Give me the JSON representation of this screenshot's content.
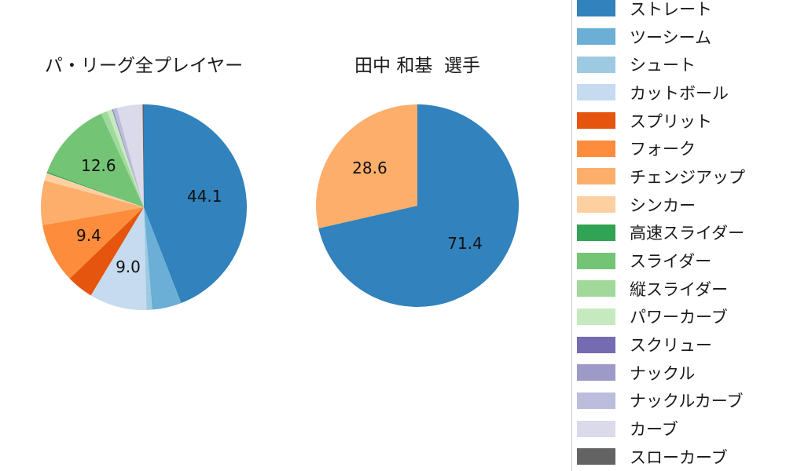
{
  "figure_title": "",
  "chart_data": [
    {
      "type": "pie",
      "title": "パ・リーグ全プレイヤー",
      "start_angle": "top",
      "direction": "clockwise",
      "min_label_pct": 8,
      "value_label_distance": 0.6,
      "slices": [
        {
          "label": "ストレート",
          "value": 44.1,
          "color": "#3182bd"
        },
        {
          "label": "ツーシーム",
          "value": 4.6,
          "color": "#6baed6"
        },
        {
          "label": "シュート",
          "value": 0.9,
          "color": "#9ecae1"
        },
        {
          "label": "カットボール",
          "value": 9.0,
          "color": "#c6dbef"
        },
        {
          "label": "スプリット",
          "value": 4.2,
          "color": "#e6550d"
        },
        {
          "label": "フォーク",
          "value": 9.4,
          "color": "#fd8d3c"
        },
        {
          "label": "チェンジアップ",
          "value": 7.0,
          "color": "#fdae6b"
        },
        {
          "label": "シンカー",
          "value": 1.2,
          "color": "#fdd0a2"
        },
        {
          "label": "高速スライダー",
          "value": 0.2,
          "color": "#31a354"
        },
        {
          "label": "スライダー",
          "value": 12.6,
          "color": "#74c476"
        },
        {
          "label": "縦スライダー",
          "value": 1.0,
          "color": "#a1d99b"
        },
        {
          "label": "パワーカーブ",
          "value": 0.8,
          "color": "#c7e9c0"
        },
        {
          "label": "スクリュー",
          "value": 0.1,
          "color": "#756bb1"
        },
        {
          "label": "ナックル",
          "value": 0.1,
          "color": "#9e9ac8"
        },
        {
          "label": "ナックルカーブ",
          "value": 0.6,
          "color": "#bcbddc"
        },
        {
          "label": "カーブ",
          "value": 4.0,
          "color": "#dadaeb"
        },
        {
          "label": "スローカーブ",
          "value": 0.2,
          "color": "#636363"
        }
      ],
      "visible_value_labels": [
        "44.1",
        "9.0",
        "9.4",
        "12.6"
      ]
    },
    {
      "type": "pie",
      "title": "田中 和基  選手",
      "start_angle": "top",
      "direction": "clockwise",
      "min_label_pct": 8,
      "value_label_distance": 0.6,
      "slices": [
        {
          "label": "ストレート",
          "value": 71.4,
          "color": "#3182bd"
        },
        {
          "label": "チェンジアップ",
          "value": 28.6,
          "color": "#fdae6b"
        }
      ],
      "visible_value_labels": [
        "71.4",
        "28.6"
      ]
    }
  ],
  "legend": {
    "position": "right",
    "items": [
      {
        "label": "ストレート",
        "color": "#3182bd"
      },
      {
        "label": "ツーシーム",
        "color": "#6baed6"
      },
      {
        "label": "シュート",
        "color": "#9ecae1"
      },
      {
        "label": "カットボール",
        "color": "#c6dbef"
      },
      {
        "label": "スプリット",
        "color": "#e6550d"
      },
      {
        "label": "フォーク",
        "color": "#fd8d3c"
      },
      {
        "label": "チェンジアップ",
        "color": "#fdae6b"
      },
      {
        "label": "シンカー",
        "color": "#fdd0a2"
      },
      {
        "label": "高速スライダー",
        "color": "#31a354"
      },
      {
        "label": "スライダー",
        "color": "#74c476"
      },
      {
        "label": "縦スライダー",
        "color": "#a1d99b"
      },
      {
        "label": "パワーカーブ",
        "color": "#c7e9c0"
      },
      {
        "label": "スクリュー",
        "color": "#756bb1"
      },
      {
        "label": "ナックル",
        "color": "#9e9ac8"
      },
      {
        "label": "ナックルカーブ",
        "color": "#bcbddc"
      },
      {
        "label": "カーブ",
        "color": "#dadaeb"
      },
      {
        "label": "スローカーブ",
        "color": "#636363"
      }
    ]
  },
  "colors": {
    "background": "#ffffff",
    "text": "#1a1a1a",
    "legend_border": "#c9c9c9"
  }
}
